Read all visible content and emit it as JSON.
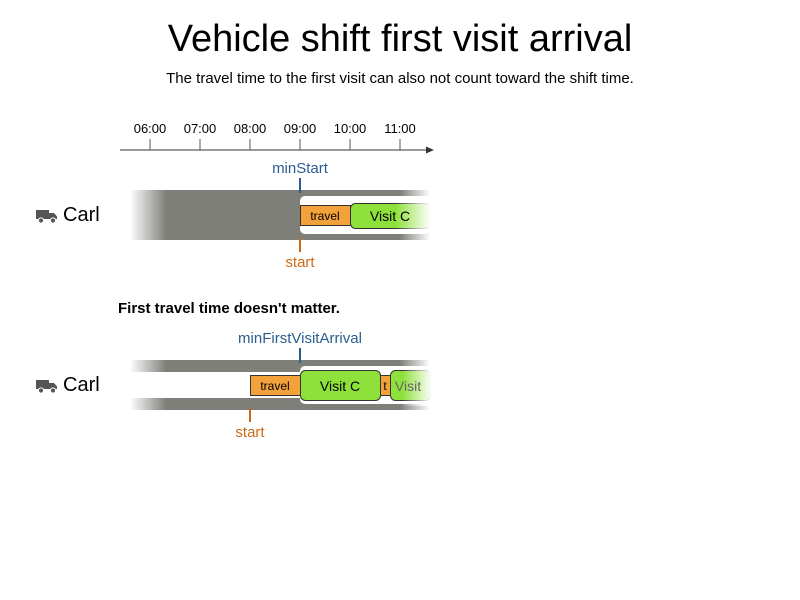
{
  "title": "Vehicle shift first visit arrival",
  "subtitle": "The travel time to the first visit can also not count toward the shift time.",
  "timeline": {
    "ticks": [
      "06:00",
      "07:00",
      "08:00",
      "09:00",
      "10:00",
      "11:00"
    ]
  },
  "row1": {
    "vehicle": "Carl",
    "vehicle_icon": "truck-icon",
    "marker_top": "minStart",
    "marker_bottom": "start",
    "blocks": {
      "travel": "travel",
      "visit": "Visit C"
    }
  },
  "section2_heading": "First travel time doesn't matter.",
  "row2": {
    "vehicle": "Carl",
    "vehicle_icon": "truck-icon",
    "marker_top": "minFirstVisitArrival",
    "marker_bottom": "start",
    "blocks": {
      "travel": "travel",
      "visit": "Visit C",
      "travel_short": "t",
      "visit2": "Visit"
    }
  },
  "colors": {
    "shift_gray": "#7f7f7a",
    "travel_orange": "#f3a13b",
    "visit_green": "#8ee03a",
    "marker_blue": "#2c5d8f",
    "marker_orange": "#cc6a17"
  }
}
